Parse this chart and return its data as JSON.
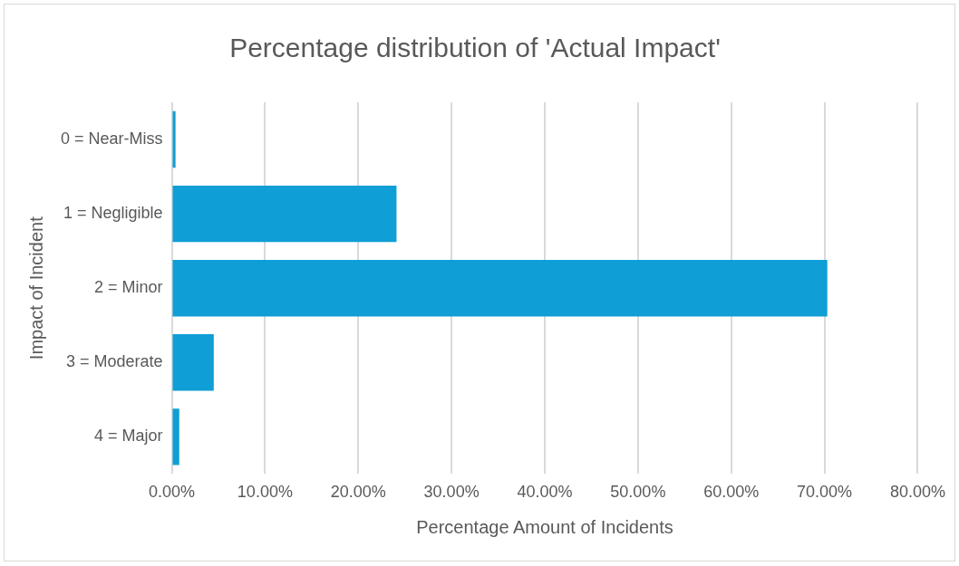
{
  "chart_data": {
    "type": "bar",
    "orientation": "horizontal",
    "title": "Percentage distribution of 'Actual Impact'",
    "xlabel": "Percentage Amount of Incidents",
    "ylabel": "Impact of Incident",
    "categories": [
      "0 = Near-Miss",
      "1 = Negligible",
      "2 = Minor",
      "3 = Moderate",
      "4 = Major"
    ],
    "values": [
      0.4,
      24.1,
      70.3,
      4.5,
      0.8
    ],
    "color": "#0f9ed5",
    "xlim": [
      0,
      80
    ],
    "xticks": [
      {
        "value": 0,
        "label": "0.00%"
      },
      {
        "value": 10,
        "label": "10.00%"
      },
      {
        "value": 20,
        "label": "20.00%"
      },
      {
        "value": 30,
        "label": "30.00%"
      },
      {
        "value": 40,
        "label": "40.00%"
      },
      {
        "value": 50,
        "label": "50.00%"
      },
      {
        "value": 60,
        "label": "60.00%"
      },
      {
        "value": 70,
        "label": "70.00%"
      },
      {
        "value": 80,
        "label": "80.00%"
      }
    ],
    "grid": "x"
  }
}
